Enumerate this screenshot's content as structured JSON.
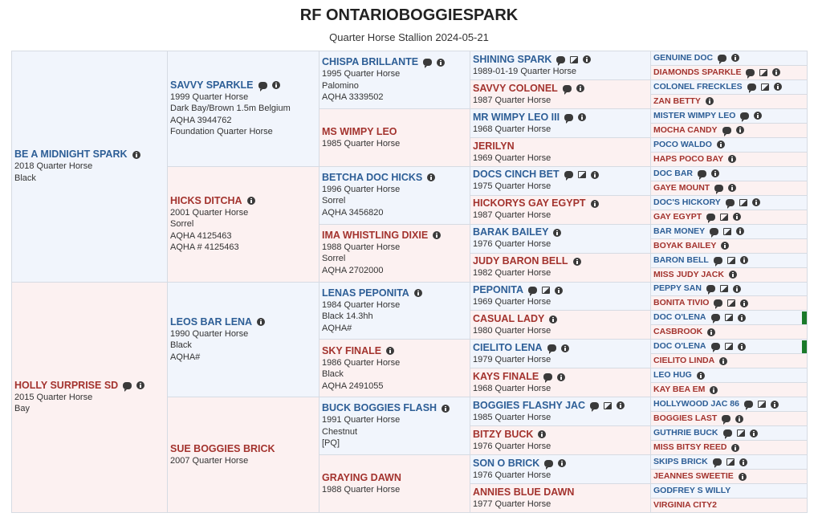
{
  "header": {
    "title": "RF ONTARIOBOGGIESPARK",
    "subtitle": "Quarter Horse Stallion 2024-05-21"
  },
  "generations": [
    [
      {
        "name": "BE A MIDNIGHT SPARK",
        "details": [
          "2018 Quarter Horse",
          "Black"
        ]
      },
      {
        "name": "HOLLY SURPRISE SD",
        "details": [
          "2015 Quarter Horse",
          "Bay"
        ]
      }
    ],
    [
      {
        "name": "SAVVY SPARKLE",
        "details": [
          "1999 Quarter Horse",
          "Dark Bay/Brown 1.5m Belgium",
          "AQHA 3944762",
          "Foundation Quarter Horse"
        ]
      },
      {
        "name": "HICKS DITCHA",
        "details": [
          "2001 Quarter Horse",
          "Sorrel",
          "AQHA 4125463",
          "AQHA # 4125463"
        ]
      },
      {
        "name": "LEOS BAR LENA",
        "details": [
          "1990 Quarter Horse",
          "Black",
          "AQHA#"
        ]
      },
      {
        "name": "SUE BOGGIES BRICK",
        "details": [
          "2007 Quarter Horse"
        ]
      }
    ],
    [
      {
        "name": "CHISPA BRILLANTE",
        "details": [
          "1995 Quarter Horse",
          "Palomino",
          "AQHA 3339502"
        ]
      },
      {
        "name": "MS WIMPY LEO",
        "details": [
          "1985 Quarter Horse"
        ]
      },
      {
        "name": "BETCHA DOC HICKS",
        "details": [
          "1996 Quarter Horse",
          "Sorrel",
          "AQHA 3456820"
        ]
      },
      {
        "name": "IMA WHISTLING DIXIE",
        "details": [
          "1988 Quarter Horse",
          "Sorrel",
          "AQHA 2702000"
        ]
      },
      {
        "name": "LENAS PEPONITA",
        "details": [
          "1984 Quarter Horse",
          "Black 14.3hh",
          "AQHA#"
        ]
      },
      {
        "name": "SKY FINALE",
        "details": [
          "1986 Quarter Horse",
          "Black",
          "AQHA 2491055"
        ]
      },
      {
        "name": "BUCK BOGGIES FLASH",
        "details": [
          "1991 Quarter Horse",
          "Chestnut",
          "[PQ]"
        ]
      },
      {
        "name": "GRAYING DAWN",
        "details": [
          "1988 Quarter Horse"
        ]
      }
    ],
    [
      {
        "name": "SHINING SPARK",
        "details": [
          "1989-01-19 Quarter Horse"
        ]
      },
      {
        "name": "SAVVY COLONEL",
        "details": [
          "1987 Quarter Horse"
        ]
      },
      {
        "name": "MR WIMPY LEO III",
        "details": [
          "1968 Quarter Horse"
        ]
      },
      {
        "name": "JERILYN",
        "details": [
          "1969 Quarter Horse"
        ]
      },
      {
        "name": "DOCS CINCH BET",
        "details": [
          "1975 Quarter Horse"
        ]
      },
      {
        "name": "HICKORYS GAY EGYPT",
        "details": [
          "1987 Quarter Horse"
        ]
      },
      {
        "name": "BARAK BAILEY",
        "details": [
          "1976 Quarter Horse"
        ]
      },
      {
        "name": "JUDY BARON BELL",
        "details": [
          "1982 Quarter Horse"
        ]
      },
      {
        "name": "PEPONITA",
        "details": [
          "1969 Quarter Horse"
        ]
      },
      {
        "name": "CASUAL LADY",
        "details": [
          "1980 Quarter Horse"
        ]
      },
      {
        "name": "CIELITO LENA",
        "details": [
          "1979 Quarter Horse"
        ]
      },
      {
        "name": "KAYS FINALE",
        "details": [
          "1968 Quarter Horse"
        ]
      },
      {
        "name": "BOGGIES FLASHY JAC",
        "details": [
          "1985 Quarter Horse"
        ]
      },
      {
        "name": "BITZY BUCK",
        "details": [
          "1976 Quarter Horse"
        ]
      },
      {
        "name": "SON O BRICK",
        "details": [
          "1976 Quarter Horse"
        ]
      },
      {
        "name": "ANNIES BLUE DAWN",
        "details": [
          "1977 Quarter Horse"
        ]
      }
    ],
    [
      {
        "name": "GENUINE DOC",
        "details": []
      },
      {
        "name": "DIAMONDS SPARKLE",
        "details": []
      },
      {
        "name": "COLONEL FRECKLES",
        "details": []
      },
      {
        "name": "ZAN BETTY",
        "details": []
      },
      {
        "name": "MISTER WIMPY LEO",
        "details": []
      },
      {
        "name": "MOCHA CANDY",
        "details": []
      },
      {
        "name": "POCO WALDO",
        "details": []
      },
      {
        "name": "HAPS POCO BAY",
        "details": []
      },
      {
        "name": "DOC BAR",
        "details": []
      },
      {
        "name": "GAYE MOUNT",
        "details": []
      },
      {
        "name": "DOC'S HICKORY",
        "details": []
      },
      {
        "name": "GAY EGYPT",
        "details": []
      },
      {
        "name": "BAR MONEY",
        "details": []
      },
      {
        "name": "BOYAK BAILEY",
        "details": []
      },
      {
        "name": "BARON BELL",
        "details": []
      },
      {
        "name": "MISS JUDY JACK",
        "details": []
      },
      {
        "name": "PEPPY SAN",
        "details": []
      },
      {
        "name": "BONITA TIVIO",
        "details": []
      },
      {
        "name": "DOC O'LENA",
        "details": []
      },
      {
        "name": "CASBROOK",
        "details": []
      },
      {
        "name": "DOC O'LENA",
        "details": []
      },
      {
        "name": "CIELITO LINDA",
        "details": []
      },
      {
        "name": "LEO HUG",
        "details": []
      },
      {
        "name": "KAY BEA EM",
        "details": []
      },
      {
        "name": "HOLLYWOOD JAC 86",
        "details": []
      },
      {
        "name": "BOGGIES LAST",
        "details": []
      },
      {
        "name": "GUTHRIE BUCK",
        "details": []
      },
      {
        "name": "MISS BITSY REED",
        "details": []
      },
      {
        "name": "SKIPS BRICK",
        "details": []
      },
      {
        "name": "JEANNES SWEETIE",
        "details": []
      },
      {
        "name": "GODFREY S WILLY",
        "details": []
      },
      {
        "name": "VIRGINIA CITY2",
        "details": []
      }
    ]
  ]
}
